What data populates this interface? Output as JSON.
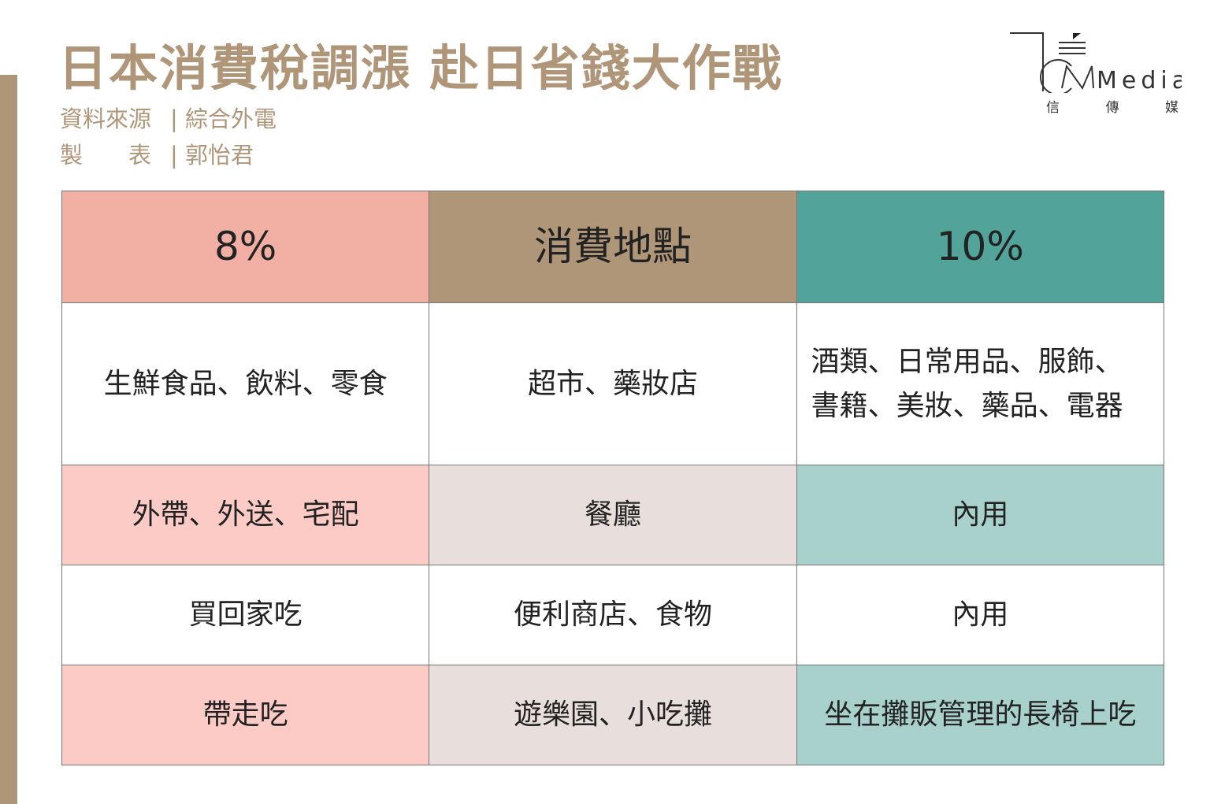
{
  "header": {
    "title": "日本消費稅調漲 赴日省錢大作戰",
    "source_label": "資料來源",
    "source_value": "綜合外電",
    "author_label": "製　　表",
    "author_value": "郭怡君",
    "separator": "|"
  },
  "logo": {
    "text": "Media",
    "subtitle": [
      "信",
      "傳",
      "媒"
    ]
  },
  "colors": {
    "brand": "#b09679",
    "rate_8": "#f2afa4",
    "rate_10": "#52a399"
  },
  "table": {
    "headers": [
      "8%",
      "消費地點",
      "10%"
    ],
    "rows": [
      [
        "生鮮食品、飲料、零食",
        "超市、藥妝店",
        "酒類、日常用品、服飾、書籍、美妝、藥品、電器"
      ],
      [
        "外帶、外送、宅配",
        "餐廳",
        "內用"
      ],
      [
        "買回家吃",
        "便利商店、食物",
        "內用"
      ],
      [
        "帶走吃",
        "遊樂園、小吃攤",
        "坐在攤販管理的長椅上吃"
      ]
    ]
  }
}
